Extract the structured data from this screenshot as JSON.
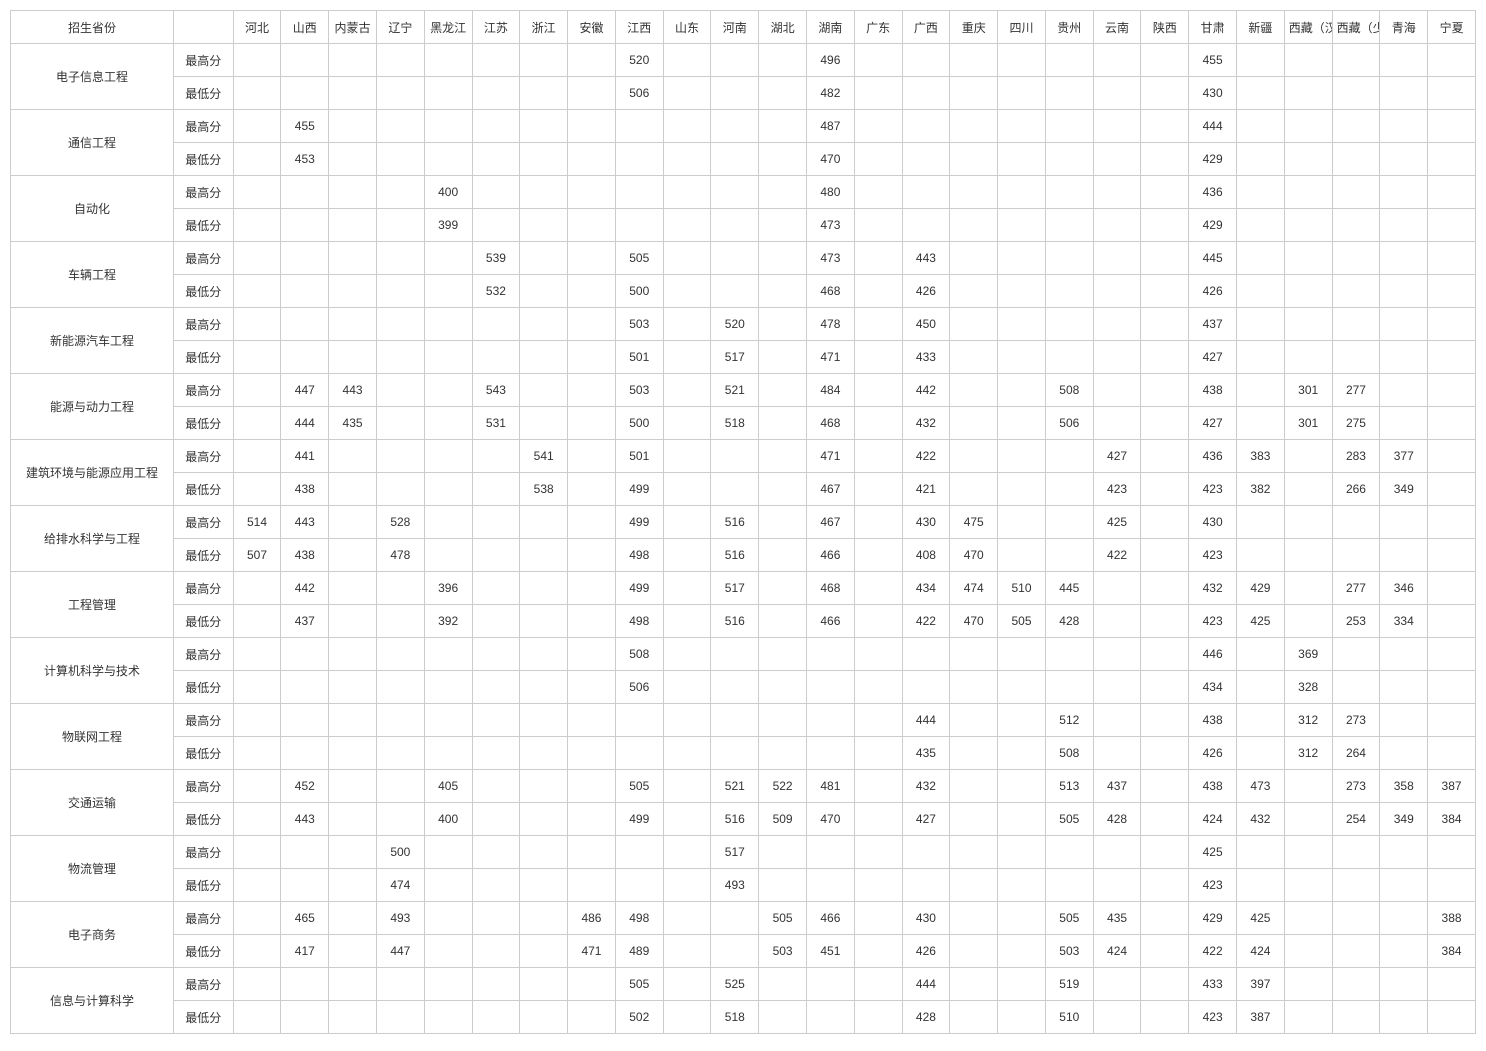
{
  "table": {
    "header_first": "招生省份",
    "header_second": "",
    "provinces": [
      "河北",
      "山西",
      "内蒙古",
      "辽宁",
      "黑龙江",
      "江苏",
      "浙江",
      "安徽",
      "江西",
      "山东",
      "河南",
      "湖北",
      "湖南",
      "广东",
      "广西",
      "重庆",
      "四川",
      "贵州",
      "云南",
      "陕西",
      "甘肃",
      "新疆",
      "西藏（汉）",
      "西藏（少数民族）",
      "青海",
      "宁夏"
    ],
    "score_type_labels": {
      "max": "最高分",
      "min": "最低分"
    },
    "majors": [
      {
        "name": "电子信息工程",
        "max": {
          "江西": "520",
          "湖南": "496",
          "甘肃": "455"
        },
        "min": {
          "江西": "506",
          "湖南": "482",
          "甘肃": "430"
        }
      },
      {
        "name": "通信工程",
        "max": {
          "山西": "455",
          "湖南": "487",
          "甘肃": "444"
        },
        "min": {
          "山西": "453",
          "湖南": "470",
          "甘肃": "429"
        }
      },
      {
        "name": "自动化",
        "max": {
          "黑龙江": "400",
          "湖南": "480",
          "甘肃": "436"
        },
        "min": {
          "黑龙江": "399",
          "湖南": "473",
          "甘肃": "429"
        }
      },
      {
        "name": "车辆工程",
        "max": {
          "江苏": "539",
          "江西": "505",
          "湖南": "473",
          "广西": "443",
          "甘肃": "445"
        },
        "min": {
          "江苏": "532",
          "江西": "500",
          "湖南": "468",
          "广西": "426",
          "甘肃": "426"
        }
      },
      {
        "name": "新能源汽车工程",
        "max": {
          "江西": "503",
          "河南": "520",
          "湖南": "478",
          "广西": "450",
          "甘肃": "437"
        },
        "min": {
          "江西": "501",
          "河南": "517",
          "湖南": "471",
          "广西": "433",
          "甘肃": "427"
        }
      },
      {
        "name": "能源与动力工程",
        "max": {
          "山西": "447",
          "内蒙古": "443",
          "江苏": "543",
          "江西": "503",
          "河南": "521",
          "湖南": "484",
          "广西": "442",
          "贵州": "508",
          "甘肃": "438",
          "西藏（汉）": "301",
          "西藏（少数民族）": "277"
        },
        "min": {
          "山西": "444",
          "内蒙古": "435",
          "江苏": "531",
          "江西": "500",
          "河南": "518",
          "湖南": "468",
          "广西": "432",
          "贵州": "506",
          "甘肃": "427",
          "西藏（汉）": "301",
          "西藏（少数民族）": "275"
        }
      },
      {
        "name": "建筑环境与能源应用工程",
        "max": {
          "山西": "441",
          "浙江": "541",
          "江西": "501",
          "湖南": "471",
          "广西": "422",
          "云南": "427",
          "甘肃": "436",
          "新疆": "383",
          "西藏（少数民族）": "283",
          "青海": "377"
        },
        "min": {
          "山西": "438",
          "浙江": "538",
          "江西": "499",
          "湖南": "467",
          "广西": "421",
          "云南": "423",
          "甘肃": "423",
          "新疆": "382",
          "西藏（少数民族）": "266",
          "青海": "349"
        }
      },
      {
        "name": "给排水科学与工程",
        "max": {
          "河北": "514",
          "山西": "443",
          "辽宁": "528",
          "江西": "499",
          "河南": "516",
          "湖南": "467",
          "广西": "430",
          "重庆": "475",
          "云南": "425",
          "甘肃": "430"
        },
        "min": {
          "河北": "507",
          "山西": "438",
          "辽宁": "478",
          "江西": "498",
          "河南": "516",
          "湖南": "466",
          "广西": "408",
          "重庆": "470",
          "云南": "422",
          "甘肃": "423"
        }
      },
      {
        "name": "工程管理",
        "max": {
          "山西": "442",
          "黑龙江": "396",
          "江西": "499",
          "河南": "517",
          "湖南": "468",
          "广西": "434",
          "重庆": "474",
          "四川": "510",
          "贵州": "445",
          "甘肃": "432",
          "新疆": "429",
          "西藏（少数民族）": "277",
          "青海": "346"
        },
        "min": {
          "山西": "437",
          "黑龙江": "392",
          "江西": "498",
          "河南": "516",
          "湖南": "466",
          "广西": "422",
          "重庆": "470",
          "四川": "505",
          "贵州": "428",
          "甘肃": "423",
          "新疆": "425",
          "西藏（少数民族）": "253",
          "青海": "334"
        }
      },
      {
        "name": "计算机科学与技术",
        "max": {
          "江西": "508",
          "甘肃": "446",
          "西藏（汉）": "369"
        },
        "min": {
          "江西": "506",
          "甘肃": "434",
          "西藏（汉）": "328"
        }
      },
      {
        "name": "物联网工程",
        "max": {
          "广西": "444",
          "贵州": "512",
          "甘肃": "438",
          "西藏（汉）": "312",
          "西藏（少数民族）": "273"
        },
        "min": {
          "广西": "435",
          "贵州": "508",
          "甘肃": "426",
          "西藏（汉）": "312",
          "西藏（少数民族）": "264"
        }
      },
      {
        "name": "交通运输",
        "max": {
          "山西": "452",
          "黑龙江": "405",
          "江西": "505",
          "河南": "521",
          "湖北": "522",
          "湖南": "481",
          "广西": "432",
          "贵州": "513",
          "云南": "437",
          "甘肃": "438",
          "新疆": "473",
          "西藏（少数民族）": "273",
          "青海": "358",
          "宁夏": "387"
        },
        "min": {
          "山西": "443",
          "黑龙江": "400",
          "江西": "499",
          "河南": "516",
          "湖北": "509",
          "湖南": "470",
          "广西": "427",
          "贵州": "505",
          "云南": "428",
          "甘肃": "424",
          "新疆": "432",
          "西藏（少数民族）": "254",
          "青海": "349",
          "宁夏": "384"
        }
      },
      {
        "name": "物流管理",
        "max": {
          "辽宁": "500",
          "河南": "517",
          "甘肃": "425"
        },
        "min": {
          "辽宁": "474",
          "河南": "493",
          "甘肃": "423"
        }
      },
      {
        "name": "电子商务",
        "max": {
          "山西": "465",
          "辽宁": "493",
          "安徽": "486",
          "江西": "498",
          "湖北": "505",
          "湖南": "466",
          "广西": "430",
          "贵州": "505",
          "云南": "435",
          "甘肃": "429",
          "新疆": "425",
          "宁夏": "388"
        },
        "min": {
          "山西": "417",
          "辽宁": "447",
          "安徽": "471",
          "江西": "489",
          "湖北": "503",
          "湖南": "451",
          "广西": "426",
          "贵州": "503",
          "云南": "424",
          "甘肃": "422",
          "新疆": "424",
          "宁夏": "384"
        }
      },
      {
        "name": "信息与计算科学",
        "max": {
          "江西": "505",
          "河南": "525",
          "广西": "444",
          "贵州": "519",
          "甘肃": "433",
          "新疆": "397"
        },
        "min": {
          "江西": "502",
          "河南": "518",
          "广西": "428",
          "贵州": "510",
          "甘肃": "423",
          "新疆": "387"
        }
      }
    ]
  }
}
